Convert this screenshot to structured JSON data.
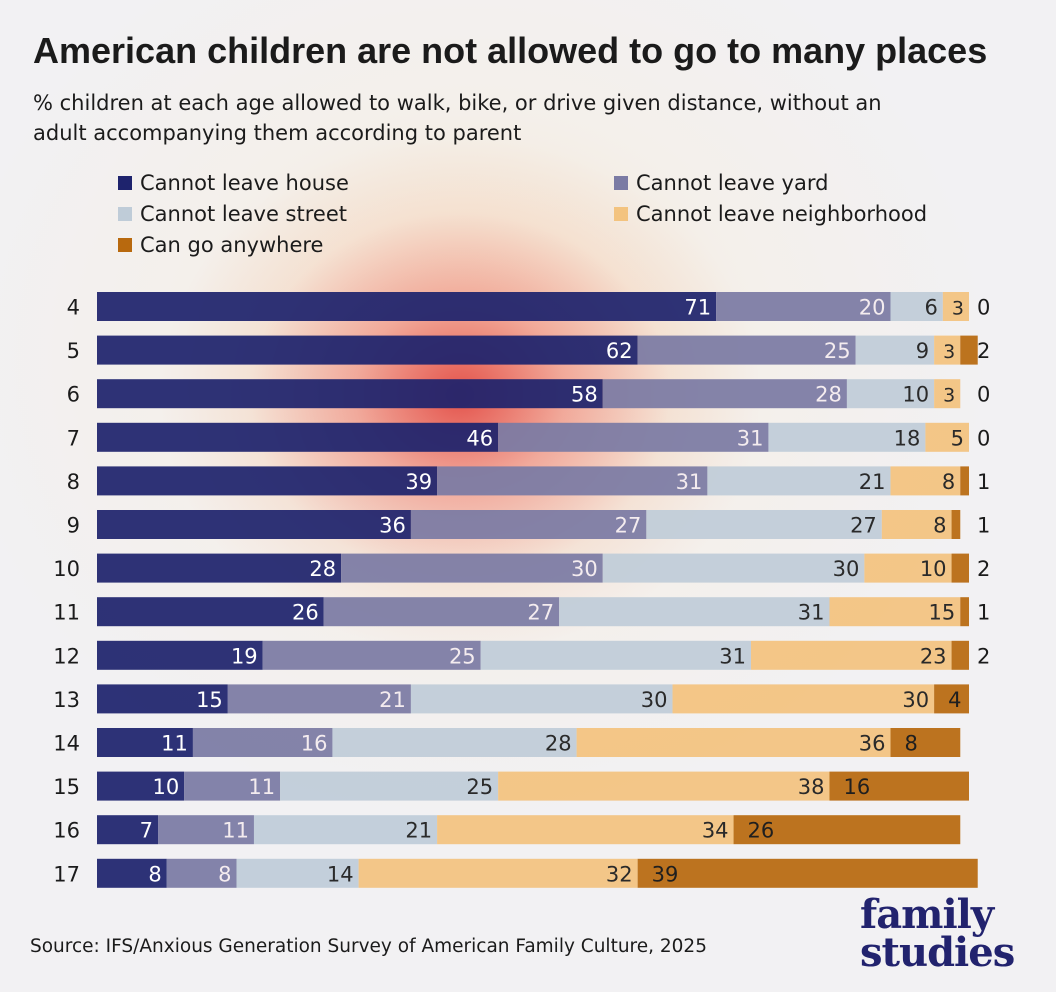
{
  "header": {
    "title": "American children are not allowed to go to many places",
    "subtitle": "% children at each age allowed to walk, bike, or drive given distance, without an adult accompanying them according to parent"
  },
  "footer": {
    "source": "Source: IFS/Anxious Generation Survey of American Family Culture, 2025",
    "logo_line1": "family",
    "logo_line2": "studies"
  },
  "chart_data": {
    "type": "bar",
    "orientation": "horizontal",
    "stacked": true,
    "title": "American children are not allowed to go to many places",
    "categories": [
      "4",
      "5",
      "6",
      "7",
      "8",
      "9",
      "10",
      "11",
      "12",
      "13",
      "14",
      "15",
      "16",
      "17"
    ],
    "legend_position": "top",
    "grid": false,
    "xlim": [
      0,
      100
    ],
    "series": [
      {
        "name": "Cannot leave house",
        "color": "#1e236d",
        "values": [
          71,
          62,
          58,
          46,
          39,
          36,
          28,
          26,
          19,
          15,
          11,
          10,
          7,
          8
        ]
      },
      {
        "name": "Cannot leave yard",
        "color": "#7b7ba4",
        "values": [
          20,
          25,
          28,
          31,
          31,
          27,
          30,
          27,
          25,
          21,
          16,
          11,
          11,
          8
        ]
      },
      {
        "name": "Cannot leave street",
        "color": "#bfccd8",
        "values": [
          6,
          9,
          10,
          18,
          21,
          27,
          30,
          31,
          31,
          30,
          28,
          25,
          21,
          14
        ]
      },
      {
        "name": "Cannot leave neighborhood",
        "color": "#f3c37f",
        "values": [
          3,
          3,
          3,
          5,
          8,
          8,
          10,
          15,
          23,
          30,
          36,
          38,
          34,
          32
        ]
      },
      {
        "name": "Can go anywhere",
        "color": "#b8690e",
        "values": [
          0,
          2,
          0,
          0,
          1,
          1,
          2,
          1,
          2,
          4,
          8,
          16,
          26,
          39
        ]
      }
    ]
  }
}
